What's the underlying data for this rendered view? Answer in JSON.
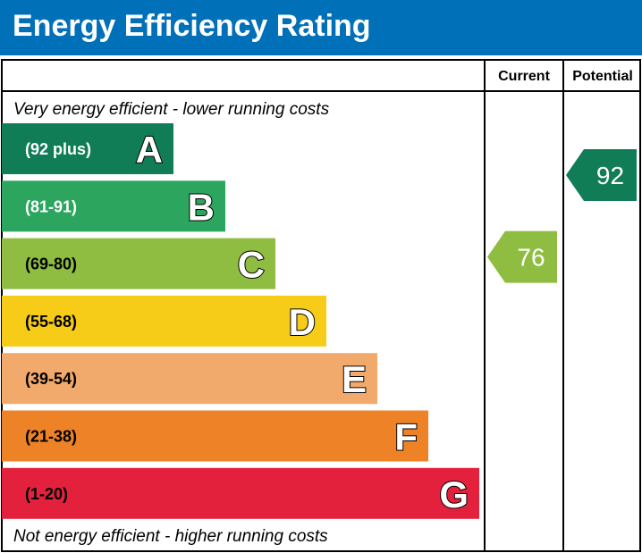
{
  "title": "Energy Efficiency Rating",
  "chart_data": {
    "type": "bar",
    "columns": [
      "Current",
      "Potential"
    ],
    "top_note": "Very energy efficient - lower running costs",
    "bottom_note": "Not energy efficient - higher running costs",
    "bands": [
      {
        "letter": "A",
        "range": "(92 plus)",
        "color": "#107d57",
        "text_color": "#ffffff"
      },
      {
        "letter": "B",
        "range": "(81-91)",
        "color": "#2ca65e",
        "text_color": "#ffffff"
      },
      {
        "letter": "C",
        "range": "(69-80)",
        "color": "#8fbd42",
        "text_color": "#000000"
      },
      {
        "letter": "D",
        "range": "(55-68)",
        "color": "#f7cc18",
        "text_color": "#000000"
      },
      {
        "letter": "E",
        "range": "(39-54)",
        "color": "#f2aa6c",
        "text_color": "#000000"
      },
      {
        "letter": "F",
        "range": "(21-38)",
        "color": "#ee8227",
        "text_color": "#000000"
      },
      {
        "letter": "G",
        "range": "(1-20)",
        "color": "#e4213c",
        "text_color": "#000000"
      }
    ],
    "current": {
      "value": 76,
      "band": "C",
      "color": "#8fbd42"
    },
    "potential": {
      "value": 92,
      "band": "A",
      "color": "#107d57"
    }
  }
}
